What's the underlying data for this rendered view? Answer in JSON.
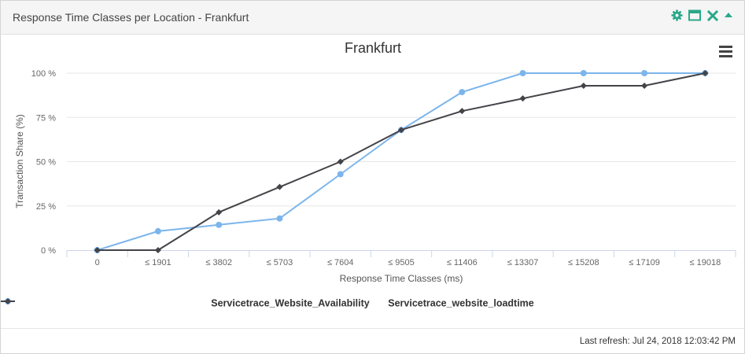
{
  "panel": {
    "title": "Response Time Classes per Location - Frankfurt",
    "tools": [
      {
        "icon": "gear-icon",
        "color": "#2aa889"
      },
      {
        "icon": "maximize-icon",
        "color": "#2aa889"
      },
      {
        "icon": "close-icon",
        "color": "#2aa889"
      },
      {
        "icon": "collapse-icon",
        "color": "#2aa889"
      }
    ]
  },
  "chart_data": {
    "type": "line",
    "title": "Frankfurt",
    "xlabel": "Response Time Classes (ms)",
    "ylabel": "Transaction Share (%)",
    "categories": [
      "0",
      "≤ 1901",
      "≤ 3802",
      "≤ 5703",
      "≤ 7604",
      "≤ 9505",
      "≤ 11406",
      "≤ 13307",
      "≤ 15208",
      "≤ 17109",
      "≤ 19018"
    ],
    "yticks": [
      "0 %",
      "25 %",
      "50 %",
      "75 %",
      "100 %"
    ],
    "ylim": [
      0,
      100
    ],
    "grid": true,
    "legend_position": "bottom-center",
    "series": [
      {
        "name": "Servicetrace_Website_Availability",
        "color": "#7cb5ec",
        "marker": "circle",
        "values": [
          0,
          10.7,
          14.3,
          17.9,
          42.9,
          67.9,
          89.3,
          100,
          100,
          100,
          100
        ]
      },
      {
        "name": "Servicetrace_website_loadtime",
        "color": "#434348",
        "marker": "diamond",
        "values": [
          0,
          0,
          21.4,
          35.7,
          50,
          67.9,
          78.6,
          85.7,
          92.9,
          92.9,
          100
        ]
      }
    ]
  },
  "footer": {
    "last_refresh": "Last refresh: Jul 24, 2018 12:03:42 PM"
  }
}
